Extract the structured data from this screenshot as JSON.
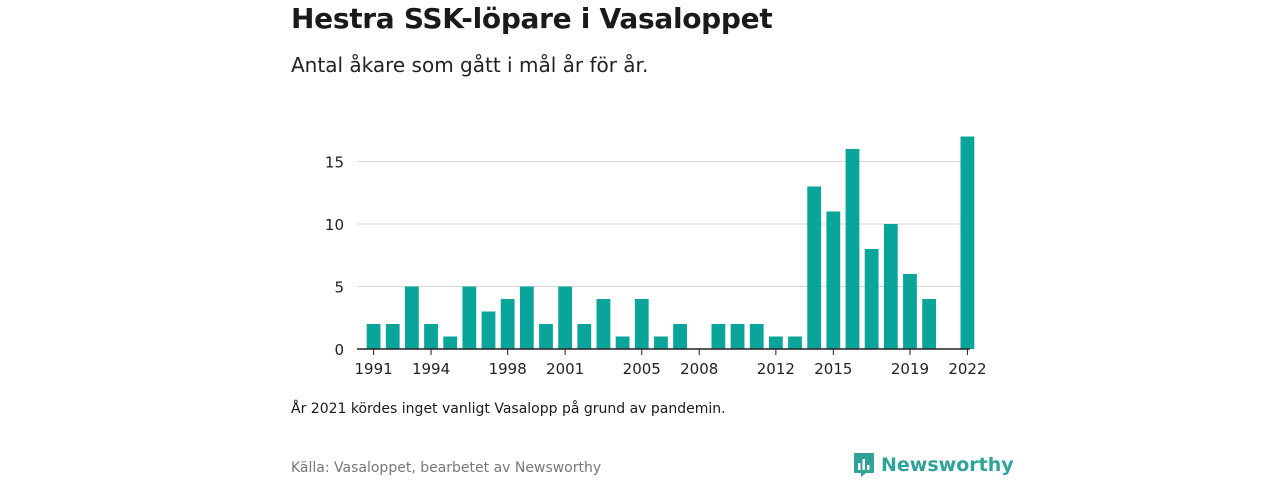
{
  "title": "Hestra SSK-löpare i Vasaloppet",
  "subtitle": "Antal åkare som gått i mål år för år.",
  "note": "År 2021 kördes inget vanligt Vasalopp på grund av pandemin.",
  "source": "Källa: Vasaloppet, bearbetet av Newsworthy",
  "brand": {
    "name": "Newsworthy",
    "icon": "newsworthy-logo-icon",
    "color": "#2fa39a"
  },
  "chart_data": {
    "type": "bar",
    "x": [
      1991,
      1992,
      1993,
      1994,
      1995,
      1996,
      1997,
      1998,
      1999,
      2000,
      2001,
      2002,
      2003,
      2004,
      2005,
      2006,
      2007,
      2008,
      2009,
      2010,
      2011,
      2012,
      2013,
      2014,
      2015,
      2016,
      2017,
      2018,
      2019,
      2020,
      2021,
      2022
    ],
    "values": [
      2,
      2,
      5,
      2,
      1,
      5,
      3,
      4,
      5,
      2,
      5,
      2,
      4,
      1,
      4,
      1,
      2,
      0,
      2,
      2,
      2,
      1,
      1,
      13,
      11,
      16,
      8,
      10,
      6,
      4,
      0,
      17
    ],
    "x_tick_labels": [
      "1991",
      "1994",
      "1998",
      "2001",
      "2005",
      "2008",
      "2012",
      "2015",
      "2019",
      "2022"
    ],
    "y_ticks": [
      0,
      5,
      10,
      15
    ],
    "ylim": [
      0,
      17.6
    ],
    "grid": true,
    "bar_color": "#0aa59a"
  }
}
